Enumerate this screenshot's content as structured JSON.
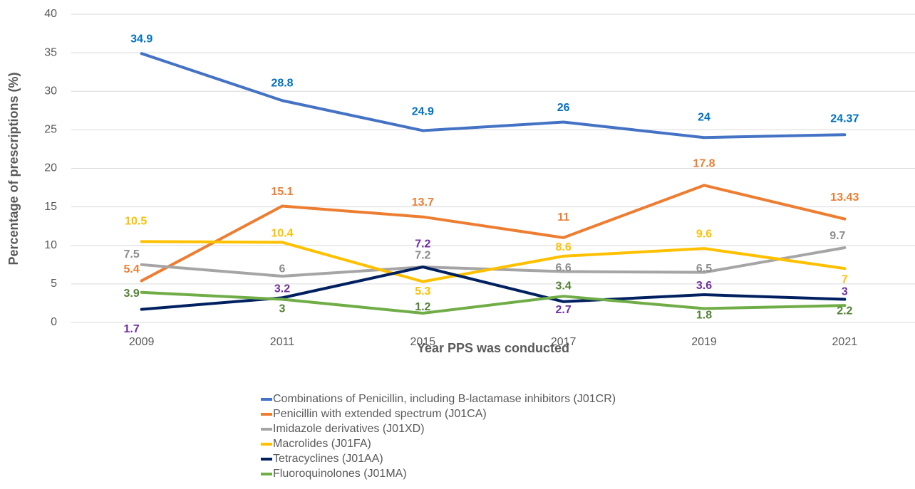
{
  "chart_data": {
    "type": "line",
    "y_label": "Percentage of prescriptions (%)",
    "x_label": "Year PPS was conducted",
    "categories": [
      "2009",
      "2011",
      "2015",
      "2017",
      "2019",
      "2021"
    ],
    "ylim": [
      0,
      40
    ],
    "yticks": [
      0,
      5,
      10,
      15,
      20,
      25,
      30,
      35,
      40
    ],
    "grid": true,
    "legend": "bottom",
    "series": [
      {
        "name": "Combinations of Penicillin, including B-lactamase inhibitors (J01CR)",
        "color": "#4472c4",
        "label_color": "#0070c0",
        "values": [
          34.9,
          28.8,
          24.9,
          26,
          24,
          24.37
        ]
      },
      {
        "name": "Penicillin with extended spectrum (J01CA)",
        "color": "#ed7d31",
        "label_color": "#ed7d31",
        "values": [
          5.4,
          15.1,
          13.7,
          11,
          17.8,
          13.43
        ]
      },
      {
        "name": "Imidazole derivatives (J01XD)",
        "color": "#a5a5a5",
        "label_color": "#8c8c8c",
        "values": [
          7.5,
          6,
          7.2,
          6.6,
          6.5,
          9.7
        ]
      },
      {
        "name": "Macrolides (J01FA)",
        "color": "#ffc000",
        "label_color": "#ffc000",
        "values": [
          10.5,
          10.4,
          5.3,
          8.6,
          9.6,
          7
        ]
      },
      {
        "name": "Tetracyclines (J01AA)",
        "color": "#002060",
        "label_color": "#7030a0",
        "values": [
          1.7,
          3.2,
          7.2,
          2.7,
          3.6,
          3
        ]
      },
      {
        "name": "Fluoroquinolones (J01MA)",
        "color": "#70ad47",
        "label_color": "#548235",
        "values": [
          3.9,
          3,
          1.2,
          3.4,
          1.8,
          2.2
        ]
      }
    ]
  }
}
